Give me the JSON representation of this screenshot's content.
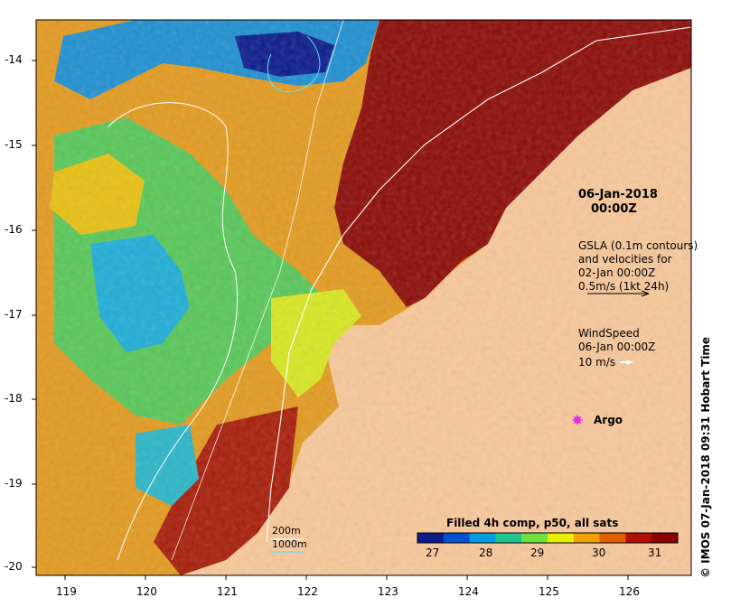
{
  "map": {
    "xticks": [
      "119",
      "120",
      "121",
      "122",
      "123",
      "124",
      "125",
      "126"
    ],
    "yticks": [
      "-14",
      "-15",
      "-16",
      "-17",
      "-18",
      "-19",
      "-20"
    ],
    "colorbar": {
      "title": "Filled 4h comp, p50, all sats",
      "ticks": [
        "27",
        "28",
        "29",
        "30",
        "31"
      ],
      "colors": [
        "#0a1a8c",
        "#0050d0",
        "#00a0e0",
        "#20c890",
        "#70e040",
        "#e8f000",
        "#f0a000",
        "#e06000",
        "#b01000",
        "#8a0000"
      ]
    },
    "land_color": "#f9c89a",
    "date": "06-Jan-2018",
    "time": "00:00Z",
    "gsla_lines": [
      "GSLA (0.1m contours)",
      "and velocities for",
      "02-Jan 00:00Z",
      "0.5m/s (1kt 24h)"
    ],
    "wind_lines": [
      "WindSpeed",
      "06-Jan 00:00Z"
    ],
    "wind_scale": "10 m/s",
    "argo_label": "Argo",
    "contour_labels": [
      "200m",
      "1000m"
    ],
    "credit": "© IMOS 07-Jan-2018 09:31 Hobart Time"
  }
}
